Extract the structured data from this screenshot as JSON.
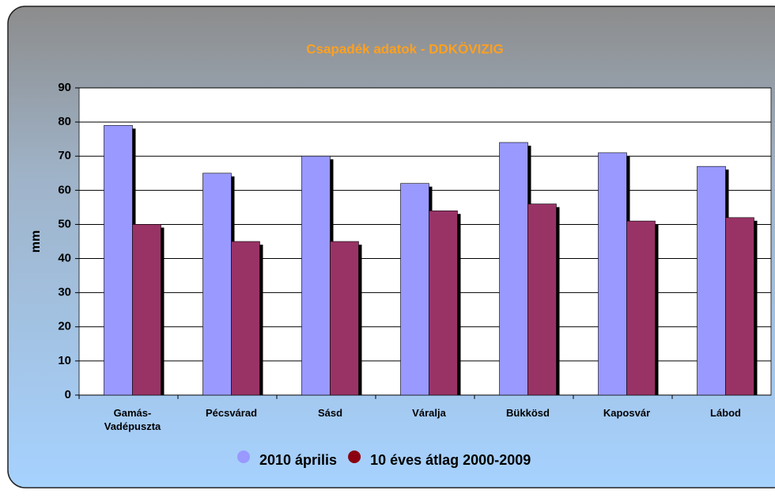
{
  "chart_data": {
    "type": "bar",
    "title": "Csapadék adatok - DDKÖVIZIG",
    "y_label": "mm",
    "categories": [
      "Gamás-\nVadépuszta",
      "Pécsvárad",
      "Sásd",
      "Váralja",
      "Bükkösd",
      "Kaposvár",
      "Lábod"
    ],
    "series": [
      {
        "name": "2010 április",
        "color": "#9999ff",
        "values": [
          79,
          65,
          70,
          62,
          74,
          71,
          67
        ]
      },
      {
        "name": "10 éves átlag 2000-2009",
        "color": "#993366",
        "values": [
          50,
          45,
          45,
          54,
          56,
          51,
          52
        ]
      }
    ],
    "ylim": [
      0,
      90
    ],
    "yticks": [
      0,
      10,
      20,
      30,
      40,
      50,
      60,
      70,
      80,
      90
    ],
    "grid": true,
    "legend": "bottom"
  }
}
